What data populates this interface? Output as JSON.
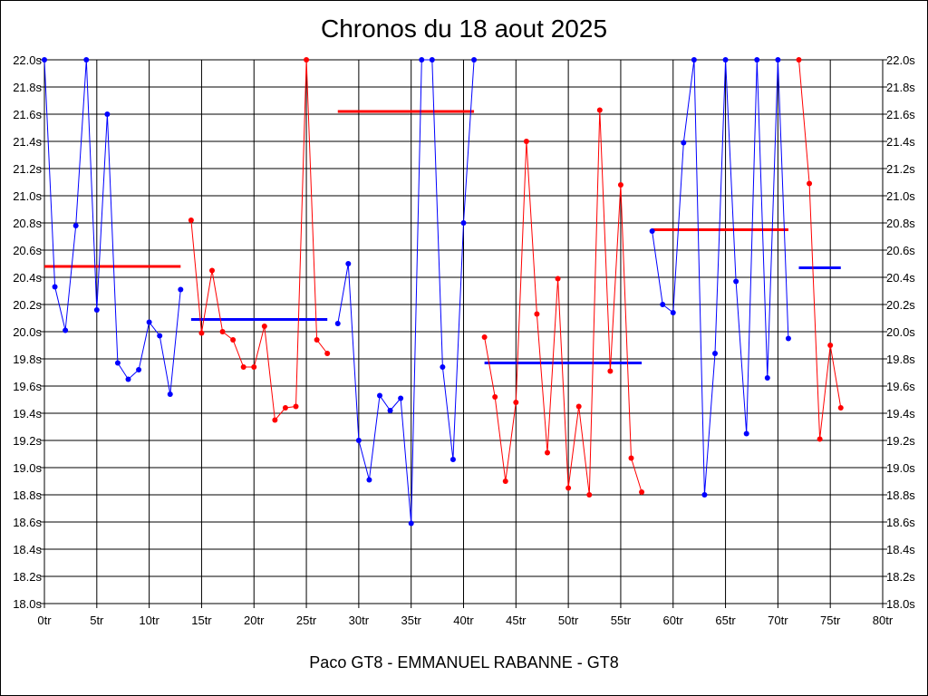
{
  "chart_data": {
    "type": "line",
    "title": "Chronos du 18 aout 2025",
    "footer": "Paco GT8 - EMMANUEL RABANNE - GT8",
    "xlabel": "",
    "ylabel": "",
    "xlim": [
      0,
      80
    ],
    "ylim": [
      18.0,
      22.0
    ],
    "grid": true,
    "x_ticks": [
      0,
      5,
      10,
      15,
      20,
      25,
      30,
      35,
      40,
      45,
      50,
      55,
      60,
      65,
      70,
      75,
      80
    ],
    "x_tick_suffix": "tr",
    "y_ticks": [
      18.0,
      18.2,
      18.4,
      18.6,
      18.8,
      19.0,
      19.2,
      19.4,
      19.6,
      19.8,
      20.0,
      20.2,
      20.4,
      20.6,
      20.8,
      21.0,
      21.2,
      21.4,
      21.6,
      21.8,
      22.0
    ],
    "y_tick_suffix": "s",
    "y_tick_decimals": 1,
    "colors": {
      "blue": "#0000ff",
      "red": "#ff0000",
      "grid": "#000000"
    },
    "series": [
      {
        "color": "blue",
        "x": [
          0,
          1,
          2,
          3,
          4,
          5,
          6,
          7,
          8,
          9,
          10,
          11,
          12,
          13
        ],
        "values": [
          22.0,
          20.33,
          20.01,
          20.78,
          22.0,
          20.16,
          21.6,
          19.77,
          19.65,
          19.72,
          20.07,
          19.97,
          19.54,
          20.31
        ]
      },
      {
        "color": "red",
        "x": [
          14,
          15,
          16,
          17,
          18,
          19,
          20,
          21,
          22,
          23,
          24,
          25,
          26,
          27
        ],
        "values": [
          20.82,
          19.99,
          20.45,
          20.0,
          19.94,
          19.74,
          19.74,
          20.04,
          19.35,
          19.44,
          19.45,
          22.0,
          19.94,
          19.84
        ]
      },
      {
        "color": "blue",
        "x": [
          28,
          29,
          30,
          31,
          32,
          33,
          34,
          35,
          36,
          37,
          38,
          39,
          40,
          41
        ],
        "values": [
          20.06,
          20.5,
          19.2,
          18.91,
          19.53,
          19.42,
          19.51,
          18.59,
          22.0,
          22.0,
          19.74,
          19.06,
          20.8,
          22.0
        ]
      },
      {
        "color": "red",
        "x": [
          42,
          43,
          44,
          45,
          46,
          47,
          48,
          49,
          50,
          51,
          52,
          53,
          54,
          55,
          56,
          57
        ],
        "values": [
          19.96,
          19.52,
          18.9,
          19.48,
          21.4,
          20.13,
          19.11,
          20.39,
          18.85,
          19.45,
          18.8,
          21.63,
          19.71,
          21.08,
          19.07,
          18.82
        ]
      },
      {
        "color": "blue",
        "x": [
          58,
          59,
          60,
          61,
          62,
          63,
          64,
          65,
          66,
          67,
          68,
          69,
          70,
          71
        ],
        "values": [
          20.74,
          20.2,
          20.14,
          21.39,
          22.0,
          18.8,
          19.84,
          22.0,
          20.37,
          19.25,
          22.0,
          19.66,
          22.0,
          19.95
        ]
      },
      {
        "color": "red",
        "x": [
          72,
          73,
          74,
          75,
          76
        ],
        "values": [
          22.0,
          21.09,
          19.21,
          19.9,
          19.44
        ]
      }
    ],
    "averages": [
      {
        "color": "red",
        "x_range": [
          0,
          13
        ],
        "value": 20.48
      },
      {
        "color": "blue",
        "x_range": [
          14,
          27
        ],
        "value": 20.09
      },
      {
        "color": "red",
        "x_range": [
          28,
          41
        ],
        "value": 21.62
      },
      {
        "color": "blue",
        "x_range": [
          42,
          57
        ],
        "value": 19.77
      },
      {
        "color": "red",
        "x_range": [
          58,
          71
        ],
        "value": 20.75
      },
      {
        "color": "blue",
        "x_range": [
          72,
          76
        ],
        "value": 20.47
      }
    ]
  }
}
